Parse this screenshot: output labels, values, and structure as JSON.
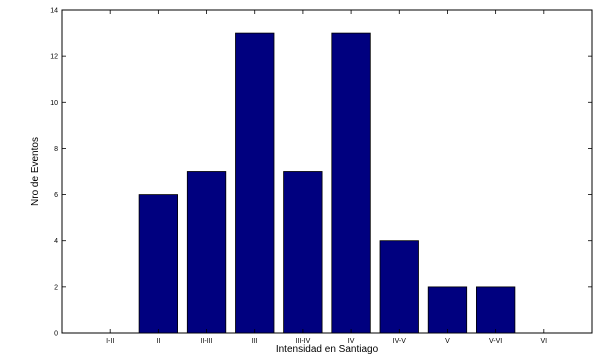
{
  "chart_data": {
    "type": "bar",
    "title": "",
    "xlabel": "Intensidad en Santiago",
    "ylabel": "Nro de Eventos",
    "categories": [
      "I-II",
      "II",
      "II-III",
      "III",
      "III-IV",
      "IV",
      "IV-V",
      "V",
      "V-VI",
      "VI"
    ],
    "values": [
      0,
      6,
      7,
      13,
      7,
      13,
      4,
      2,
      2,
      0
    ],
    "ylim": [
      0,
      14
    ],
    "yticks": [
      0,
      2,
      4,
      6,
      8,
      10,
      12,
      14
    ],
    "grid": false,
    "bar_color": "#00007f"
  }
}
